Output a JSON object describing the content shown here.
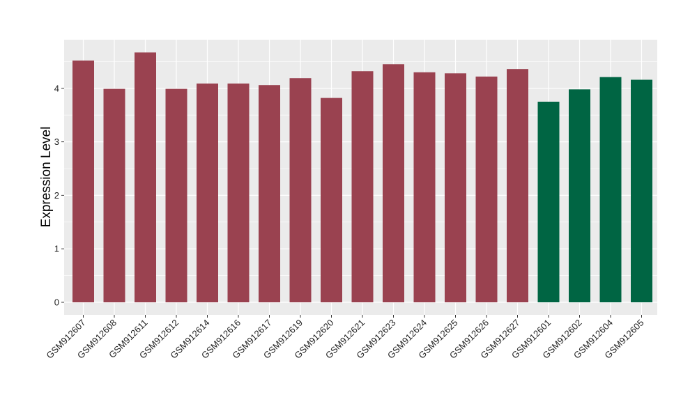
{
  "chart_data": {
    "type": "bar",
    "title": "",
    "xlabel": "",
    "ylabel": "Expression Level",
    "ylim": [
      0,
      4.9
    ],
    "yticks": [
      0,
      1,
      2,
      3,
      4
    ],
    "grid": true,
    "legend": "none",
    "colors": {
      "group_a": "#9a4250",
      "group_b": "#006543",
      "panel_bg": "#ebebeb",
      "grid": "#ffffff"
    },
    "categories": [
      "GSM912607",
      "GSM912608",
      "GSM912611",
      "GSM912612",
      "GSM912614",
      "GSM912616",
      "GSM912617",
      "GSM912619",
      "GSM912620",
      "GSM912621",
      "GSM912623",
      "GSM912624",
      "GSM912625",
      "GSM912626",
      "GSM912627",
      "GSM912601",
      "GSM912602",
      "GSM912604",
      "GSM912605"
    ],
    "values": [
      4.52,
      3.99,
      4.67,
      3.99,
      4.09,
      4.09,
      4.06,
      4.19,
      3.82,
      4.32,
      4.45,
      4.3,
      4.28,
      4.22,
      4.36,
      3.75,
      3.98,
      4.21,
      4.16
    ],
    "groups": [
      "a",
      "a",
      "a",
      "a",
      "a",
      "a",
      "a",
      "a",
      "a",
      "a",
      "a",
      "a",
      "a",
      "a",
      "a",
      "b",
      "b",
      "b",
      "b"
    ]
  }
}
